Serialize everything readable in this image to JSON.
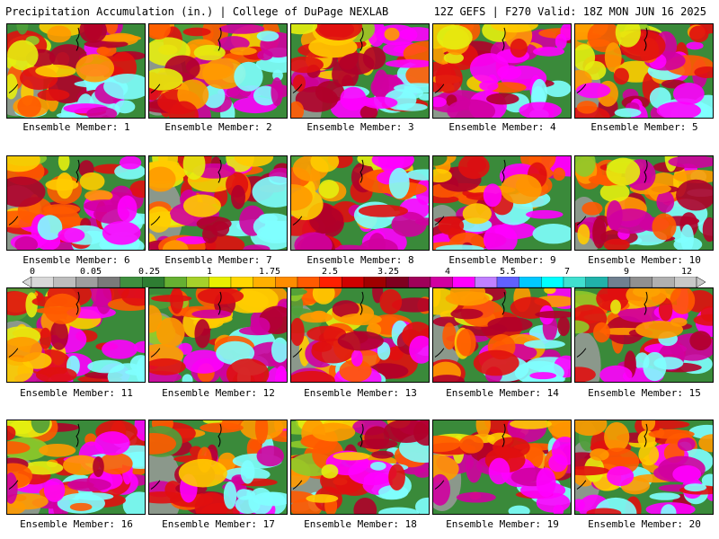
{
  "header": {
    "left_title": "Precipitation Accumulation (in.) | College of DuPage NEXLAB",
    "right_title": "12Z GEFS | F270 Valid: 18Z MON JUN 16 2025"
  },
  "panels": [
    {
      "label": "Ensemble Member: 1"
    },
    {
      "label": "Ensemble Member: 2"
    },
    {
      "label": "Ensemble Member: 3"
    },
    {
      "label": "Ensemble Member: 4"
    },
    {
      "label": "Ensemble Member: 5"
    },
    {
      "label": "Ensemble Member: 6"
    },
    {
      "label": "Ensemble Member: 7"
    },
    {
      "label": "Ensemble Member: 8"
    },
    {
      "label": "Ensemble Member: 9"
    },
    {
      "label": "Ensemble Member: 10"
    },
    {
      "label": "Ensemble Member: 11"
    },
    {
      "label": "Ensemble Member: 12"
    },
    {
      "label": "Ensemble Member: 13"
    },
    {
      "label": "Ensemble Member: 14"
    },
    {
      "label": "Ensemble Member: 15"
    },
    {
      "label": "Ensemble Member: 16"
    },
    {
      "label": "Ensemble Member: 17"
    },
    {
      "label": "Ensemble Member: 18"
    },
    {
      "label": "Ensemble Member: 19"
    },
    {
      "label": "Ensemble Member: 20"
    }
  ],
  "colorbar": {
    "tick_labels": [
      "0",
      "0.05",
      "0.25",
      "1",
      "1.75",
      "2.5",
      "3.25",
      "4",
      "5.5",
      "7",
      "9",
      "12"
    ],
    "colors": [
      "#d8d8d8",
      "#bdbdbd",
      "#9e9e9e",
      "#7a7a7a",
      "#3f8f3f",
      "#2e7d32",
      "#66b032",
      "#a6d12a",
      "#e8f000",
      "#ffd700",
      "#ffb000",
      "#ff8c00",
      "#ff5a00",
      "#ff2000",
      "#d00000",
      "#a00000",
      "#800020",
      "#a0005a",
      "#d000a0",
      "#ff00ff",
      "#c080ff",
      "#6060ff",
      "#00c8ff",
      "#00ffff",
      "#40e0d0",
      "#20b2aa",
      "#708090",
      "#909090",
      "#b0b0b0",
      "#c8c8c8"
    ]
  }
}
